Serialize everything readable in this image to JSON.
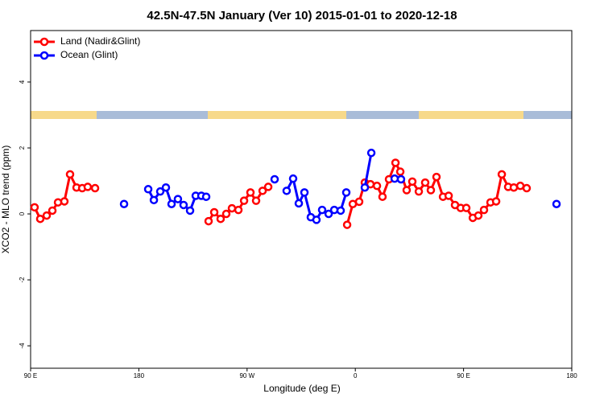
{
  "chart_data": {
    "type": "line",
    "title": "42.5N-47.5N January (Ver 10)   2015-01-01 to 2020-12-18",
    "x_label": "Longitude (deg E)",
    "y_label": "XCO2 - MLO trend (ppm)",
    "xlim": [
      90,
      540
    ],
    "ylim": [
      -4.68,
      5.56
    ],
    "xticks": [
      {
        "value": 90,
        "label": "90 E"
      },
      180,
      {
        "value": 270,
        "label": "90 W"
      },
      {
        "value": 360,
        "label": "0"
      },
      {
        "value": 450,
        "label": "90 E"
      },
      {
        "value": 540,
        "label": "180"
      }
    ],
    "yticks": [
      -4,
      -2,
      0,
      2,
      4
    ],
    "legend": "top-left",
    "series": [
      {
        "name": "Land (Nadir&Glint)",
        "color": "#ff0000",
        "x": [
          93.3,
          98.0,
          103.4,
          108.1,
          112.8,
          118.1,
          122.8,
          128.2,
          132.9,
          137.5,
          143.6,
          null,
          238.0,
          242.7,
          248.0,
          252.7,
          257.4,
          262.8,
          267.5,
          272.8,
          277.5,
          282.9,
          287.6,
          null,
          353.2,
          357.9,
          363.2,
          367.9,
          372.6,
          378.0,
          382.6,
          388.0,
          393.4,
          397.4,
          402.7,
          407.4,
          412.8,
          418.1,
          422.8,
          427.5,
          432.9,
          437.6,
          442.9,
          447.6,
          452.3,
          457.7,
          462.3,
          467.0,
          472.4,
          477.1,
          481.8,
          487.1,
          491.8,
          497.2,
          502.5
        ],
        "values": [
          0.2,
          -0.15,
          -0.05,
          0.1,
          0.35,
          0.38,
          1.2,
          0.8,
          0.78,
          0.82,
          0.78,
          null,
          -0.22,
          0.05,
          -0.15,
          0.0,
          0.17,
          0.12,
          0.4,
          0.65,
          0.4,
          0.7,
          0.82,
          null,
          -0.33,
          0.3,
          0.37,
          0.95,
          0.9,
          0.85,
          0.52,
          1.05,
          1.55,
          1.28,
          0.72,
          0.98,
          0.68,
          0.95,
          0.72,
          1.12,
          0.52,
          0.55,
          0.27,
          0.18,
          0.18,
          -0.12,
          -0.05,
          0.12,
          0.35,
          0.38,
          1.2,
          0.82,
          0.8,
          0.85,
          0.78
        ]
      },
      {
        "name": "Ocean (Glint)",
        "color": "#0000ff",
        "x": [
          167.7,
          null,
          187.8,
          192.5,
          197.8,
          202.5,
          207.2,
          212.5,
          217.2,
          222.6,
          227.3,
          232.0,
          236.0,
          null,
          292.9,
          null,
          302.9,
          308.3,
          313.0,
          317.7,
          323.0,
          327.7,
          332.4,
          337.8,
          342.5,
          347.8,
          352.5,
          null,
          367.9,
          373.3,
          null,
          392.7,
          398.0,
          null,
          527.3
        ],
        "values": [
          0.3,
          null,
          0.75,
          0.42,
          0.68,
          0.8,
          0.3,
          0.45,
          0.27,
          0.1,
          0.55,
          0.55,
          0.52,
          null,
          1.05,
          null,
          0.7,
          1.07,
          0.32,
          0.65,
          -0.1,
          -0.18,
          0.12,
          0.0,
          0.12,
          0.1,
          0.65,
          null,
          0.8,
          1.85,
          null,
          1.07,
          1.05,
          null,
          0.3
        ]
      }
    ]
  }
}
